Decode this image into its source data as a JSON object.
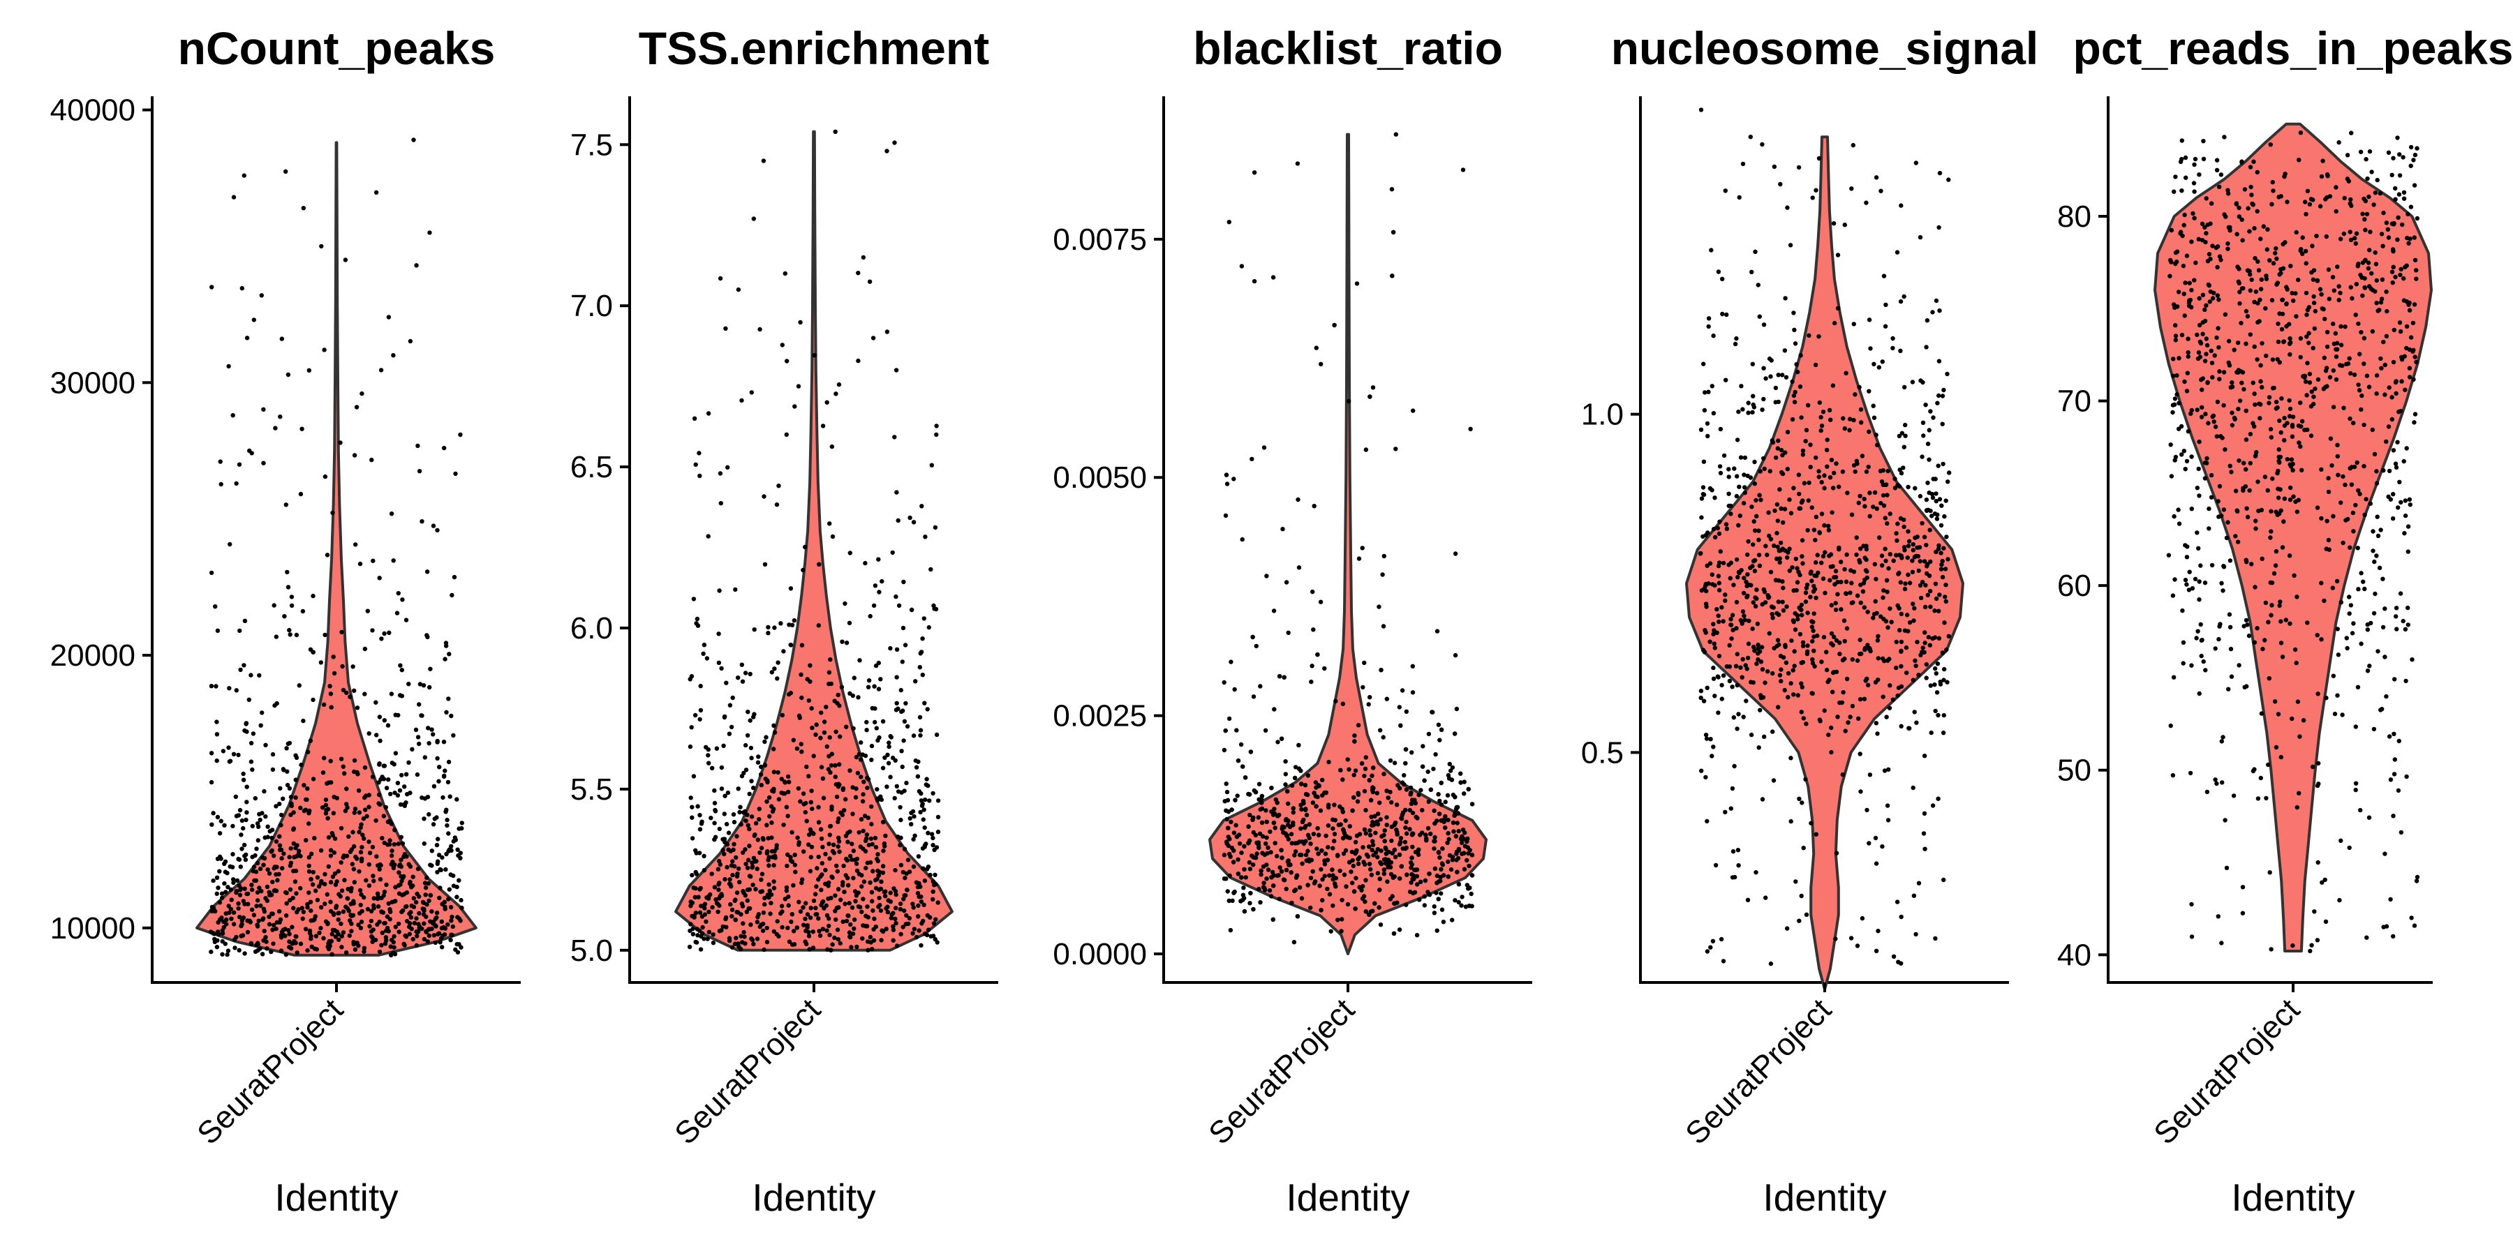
{
  "chart_data": [
    {
      "type": "violin",
      "title": "nCount_peaks",
      "xlabel": "Identity",
      "ylabel": "",
      "categories": [
        "SeuratProject"
      ],
      "ylim": [
        8000,
        40500
      ],
      "yticks": [
        10000,
        20000,
        30000,
        40000
      ],
      "ytick_labels": [
        "10000",
        "20000",
        "30000",
        "40000"
      ],
      "fill_color": "#F8766D",
      "violin_profile": [
        [
          9000,
          0.3
        ],
        [
          9500,
          0.72
        ],
        [
          10000,
          1.0
        ],
        [
          10800,
          0.88
        ],
        [
          11800,
          0.66
        ],
        [
          13000,
          0.48
        ],
        [
          14500,
          0.34
        ],
        [
          16000,
          0.24
        ],
        [
          17500,
          0.15
        ],
        [
          19000,
          0.085
        ],
        [
          20500,
          0.062
        ],
        [
          22000,
          0.05
        ],
        [
          23500,
          0.035
        ],
        [
          25500,
          0.022
        ],
        [
          27500,
          0.014
        ],
        [
          30000,
          0.01
        ],
        [
          33000,
          0.006
        ],
        [
          36000,
          0.004
        ],
        [
          38800,
          0.002
        ]
      ],
      "points": {
        "n": 1000,
        "ymin": 9000,
        "outliers": [
          35500,
          35000,
          34500,
          34300,
          36400,
          36800,
          38900,
          33500,
          33200,
          32300,
          32400,
          31000,
          31200,
          29100,
          28300,
          28800,
          27600,
          27500,
          26300
        ]
      }
    },
    {
      "type": "violin",
      "title": "TSS.enrichment",
      "xlabel": "Identity",
      "ylabel": "",
      "categories": [
        "SeuratProject"
      ],
      "ylim": [
        4.9,
        7.65
      ],
      "yticks": [
        5.0,
        5.5,
        6.0,
        6.5,
        7.0,
        7.5
      ],
      "ytick_labels": [
        "5.0",
        "5.5",
        "6.0",
        "6.5",
        "7.0",
        "7.5"
      ],
      "fill_color": "#F8766D",
      "violin_profile": [
        [
          5.0,
          0.55
        ],
        [
          5.05,
          0.8
        ],
        [
          5.12,
          1.0
        ],
        [
          5.2,
          0.9
        ],
        [
          5.3,
          0.68
        ],
        [
          5.4,
          0.52
        ],
        [
          5.5,
          0.42
        ],
        [
          5.6,
          0.34
        ],
        [
          5.7,
          0.27
        ],
        [
          5.8,
          0.21
        ],
        [
          5.9,
          0.16
        ],
        [
          6.0,
          0.12
        ],
        [
          6.1,
          0.09
        ],
        [
          6.2,
          0.065
        ],
        [
          6.3,
          0.045
        ],
        [
          6.45,
          0.03
        ],
        [
          6.6,
          0.022
        ],
        [
          6.8,
          0.014
        ],
        [
          7.0,
          0.01
        ],
        [
          7.3,
          0.006
        ],
        [
          7.54,
          0.004
        ]
      ],
      "points": {
        "n": 1000,
        "ymin": 5.0,
        "outliers": [
          7.54,
          7.48,
          7.27,
          7.15,
          7.1,
          7.05,
          6.9,
          6.8,
          6.75,
          6.7,
          6.65,
          6.6
        ]
      }
    },
    {
      "type": "violin",
      "title": "blacklist_ratio",
      "xlabel": "Identity",
      "ylabel": "",
      "categories": [
        "SeuratProject"
      ],
      "ylim": [
        -0.0003,
        0.009
      ],
      "yticks": [
        0.0,
        0.0025,
        0.005,
        0.0075
      ],
      "ytick_labels": [
        "0.0000",
        "0.0025",
        "0.0050",
        "0.0075"
      ],
      "fill_color": "#F8766D",
      "violin_profile": [
        [
          0.0,
          0.0
        ],
        [
          0.0002,
          0.05
        ],
        [
          0.0004,
          0.2
        ],
        [
          0.0006,
          0.55
        ],
        [
          0.0008,
          0.85
        ],
        [
          0.001,
          0.98
        ],
        [
          0.0012,
          1.0
        ],
        [
          0.0014,
          0.9
        ],
        [
          0.0016,
          0.62
        ],
        [
          0.0018,
          0.38
        ],
        [
          0.002,
          0.22
        ],
        [
          0.0023,
          0.14
        ],
        [
          0.0026,
          0.1
        ],
        [
          0.0029,
          0.06
        ],
        [
          0.0032,
          0.035
        ],
        [
          0.0036,
          0.025
        ],
        [
          0.0042,
          0.02
        ],
        [
          0.005,
          0.014
        ],
        [
          0.006,
          0.01
        ],
        [
          0.0075,
          0.007
        ],
        [
          0.0086,
          0.005
        ]
      ],
      "points": {
        "n": 1000,
        "ymin": 0.0,
        "outliers": [
          0.0086,
          0.0082,
          0.0071,
          0.0058,
          0.0057,
          0.0053,
          0.0047,
          0.0046,
          0.0042,
          0.0039,
          0.0038,
          0.0036
        ]
      }
    },
    {
      "type": "violin",
      "title": "nucleosome_signal",
      "xlabel": "Identity",
      "ylabel": "",
      "categories": [
        "SeuratProject"
      ],
      "ylim": [
        0.16,
        1.47
      ],
      "yticks": [
        0.5,
        1.0
      ],
      "ytick_labels": [
        "0.5",
        "1.0"
      ],
      "fill_color": "#F8766D",
      "violin_profile": [
        [
          0.15,
          0.0
        ],
        [
          0.18,
          0.04
        ],
        [
          0.22,
          0.07
        ],
        [
          0.26,
          0.1
        ],
        [
          0.3,
          0.1
        ],
        [
          0.35,
          0.08
        ],
        [
          0.4,
          0.09
        ],
        [
          0.45,
          0.12
        ],
        [
          0.5,
          0.19
        ],
        [
          0.55,
          0.36
        ],
        [
          0.6,
          0.62
        ],
        [
          0.65,
          0.88
        ],
        [
          0.7,
          0.98
        ],
        [
          0.75,
          1.0
        ],
        [
          0.8,
          0.92
        ],
        [
          0.85,
          0.72
        ],
        [
          0.9,
          0.52
        ],
        [
          0.95,
          0.4
        ],
        [
          1.0,
          0.31
        ],
        [
          1.05,
          0.23
        ],
        [
          1.1,
          0.16
        ],
        [
          1.15,
          0.11
        ],
        [
          1.2,
          0.07
        ],
        [
          1.25,
          0.05
        ],
        [
          1.3,
          0.035
        ],
        [
          1.35,
          0.028
        ],
        [
          1.41,
          0.02
        ]
      ],
      "points": {
        "n": 1000,
        "ymin": 0.17,
        "outliers": [
          1.45,
          1.41,
          1.37,
          1.35,
          1.33,
          1.32,
          1.28,
          1.25,
          1.2
        ]
      }
    },
    {
      "type": "violin",
      "title": "pct_reads_in_peaks",
      "xlabel": "Identity",
      "ylabel": "",
      "categories": [
        "SeuratProject"
      ],
      "ylim": [
        38.5,
        86.5
      ],
      "yticks": [
        40,
        50,
        60,
        70,
        80
      ],
      "ytick_labels": [
        "40",
        "50",
        "60",
        "70",
        "80"
      ],
      "fill_color": "#F8766D",
      "violin_profile": [
        [
          40.2,
          0.06
        ],
        [
          42,
          0.07
        ],
        [
          44,
          0.085
        ],
        [
          46,
          0.11
        ],
        [
          48,
          0.135
        ],
        [
          50,
          0.16
        ],
        [
          52,
          0.19
        ],
        [
          54,
          0.23
        ],
        [
          56,
          0.27
        ],
        [
          58,
          0.31
        ],
        [
          60,
          0.37
        ],
        [
          62,
          0.44
        ],
        [
          64,
          0.53
        ],
        [
          66,
          0.63
        ],
        [
          68,
          0.73
        ],
        [
          70,
          0.82
        ],
        [
          72,
          0.9
        ],
        [
          74,
          0.96
        ],
        [
          76,
          1.0
        ],
        [
          78,
          0.98
        ],
        [
          80,
          0.86
        ],
        [
          81,
          0.7
        ],
        [
          82,
          0.5
        ],
        [
          83,
          0.34
        ],
        [
          84,
          0.2
        ],
        [
          85,
          0.05
        ]
      ],
      "points": {
        "n": 1000,
        "ymin": 40.2,
        "outliers": [
          40.3,
          40.5,
          41,
          41.5,
          42,
          43,
          44,
          45,
          82.8,
          83.1,
          83.0
        ]
      }
    }
  ]
}
